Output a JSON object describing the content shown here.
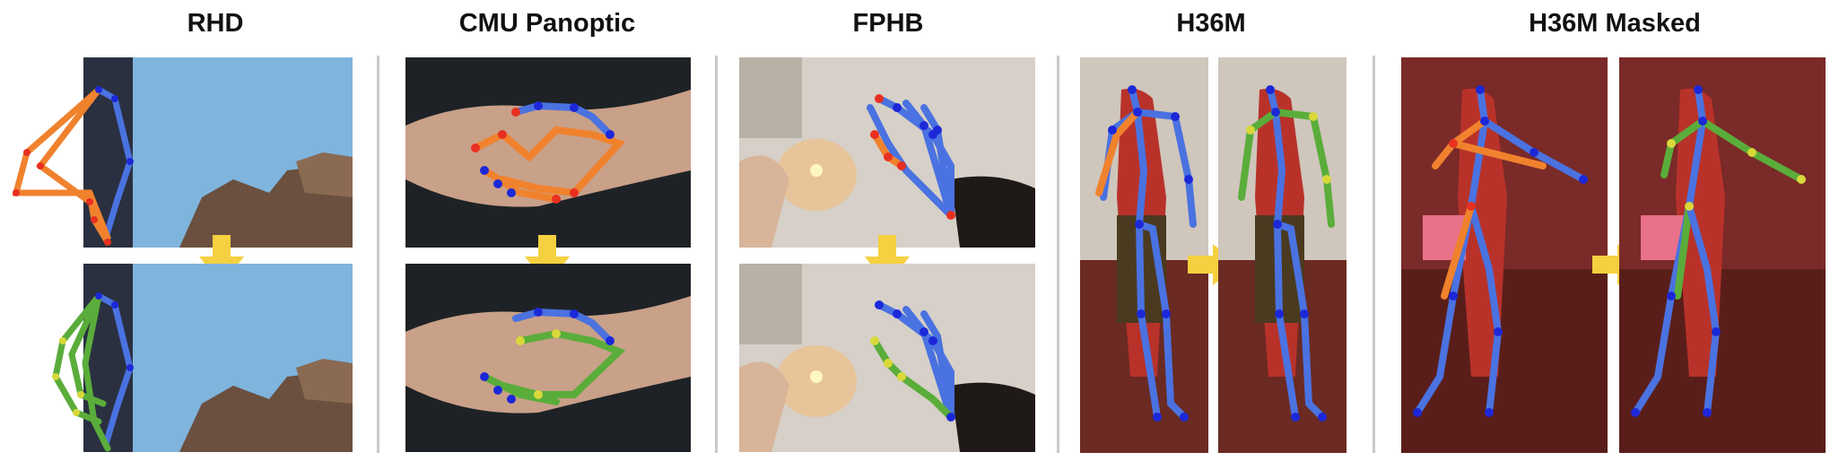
{
  "titles": {
    "rhd": "RHD",
    "cmu": "CMU Panoptic",
    "fphb": "FPHB",
    "h36m": "H36M",
    "h36m_masked": "H36M Masked"
  },
  "colors": {
    "left_limb": "#f0822e",
    "right_limb": "#4a72e0",
    "corrected_limb": "#5aad3a",
    "joint_blue": "#1c28d8",
    "joint_red": "#e83020",
    "joint_yellow": "#d8d83a",
    "arrow": "#f5d040",
    "mask": "#e9728a",
    "separator": "#c8c8c8"
  },
  "icons": [
    "down-arrow-icon",
    "right-arrow-icon"
  ]
}
